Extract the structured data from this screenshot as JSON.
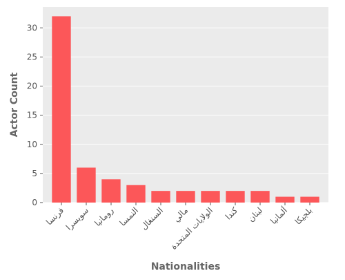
{
  "chart_data": {
    "type": "bar",
    "title": "",
    "xlabel": "Nationalities",
    "ylabel": "Actor Count",
    "categories": [
      "فرنسا",
      "سويسرا",
      "رومانيا",
      "النمسا",
      "السنغال",
      "مالي",
      "الولايات المتحدة",
      "كندا",
      "لبنان",
      "ألمانيا",
      "بلجيكا"
    ],
    "values": [
      32,
      6,
      4,
      3,
      2,
      2,
      2,
      2,
      2,
      1,
      1
    ],
    "ylim": [
      0,
      33.6
    ],
    "yticks": [
      0,
      5,
      10,
      15,
      20,
      25,
      30
    ],
    "grid": true,
    "colors": {
      "bar": "#fc5759",
      "panel": "#ebebeb",
      "grid": "#ffffff"
    }
  }
}
